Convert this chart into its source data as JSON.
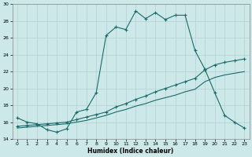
{
  "xlabel": "Humidex (Indice chaleur)",
  "bg_color": "#cce8e8",
  "grid_color": "#b8d4d4",
  "line_color": "#1a6b6b",
  "xlim": [
    -0.5,
    23.5
  ],
  "ylim": [
    14,
    30
  ],
  "yticks": [
    14,
    16,
    18,
    20,
    22,
    24,
    26,
    28,
    30
  ],
  "xticks": [
    0,
    1,
    2,
    3,
    4,
    5,
    6,
    7,
    8,
    9,
    10,
    11,
    12,
    13,
    14,
    15,
    16,
    17,
    18,
    19,
    20,
    21,
    22,
    23
  ],
  "series1_x": [
    0,
    1,
    2,
    3,
    4,
    5,
    6,
    7,
    8,
    9,
    10,
    11,
    12,
    13,
    14,
    15,
    16,
    17,
    18,
    19,
    20,
    21,
    22,
    23
  ],
  "series1_y": [
    16.5,
    16.0,
    15.8,
    15.1,
    14.8,
    15.2,
    17.2,
    17.5,
    19.5,
    26.3,
    27.3,
    27.0,
    29.2,
    28.3,
    29.0,
    28.2,
    28.7,
    28.7,
    24.5,
    22.3,
    19.5,
    16.8,
    16.0,
    15.3
  ],
  "series2_x": [
    0,
    1,
    2,
    3,
    4,
    5,
    6,
    7,
    8,
    9,
    10,
    11,
    12,
    13,
    14,
    15,
    16,
    17,
    18,
    19,
    20,
    21,
    22,
    23
  ],
  "series2_y": [
    15.5,
    15.6,
    15.7,
    15.8,
    15.9,
    16.0,
    16.3,
    16.6,
    16.9,
    17.2,
    17.8,
    18.2,
    18.7,
    19.1,
    19.6,
    20.0,
    20.4,
    20.8,
    21.2,
    22.2,
    22.8,
    23.1,
    23.3,
    23.5
  ],
  "series3_x": [
    0,
    1,
    2,
    3,
    4,
    5,
    6,
    7,
    8,
    9,
    10,
    11,
    12,
    13,
    14,
    15,
    16,
    17,
    18,
    19,
    20,
    21,
    22,
    23
  ],
  "series3_y": [
    15.3,
    15.4,
    15.5,
    15.6,
    15.7,
    15.8,
    16.0,
    16.2,
    16.5,
    16.8,
    17.2,
    17.5,
    17.9,
    18.2,
    18.6,
    18.9,
    19.2,
    19.6,
    19.9,
    20.8,
    21.3,
    21.6,
    21.8,
    22.0
  ]
}
